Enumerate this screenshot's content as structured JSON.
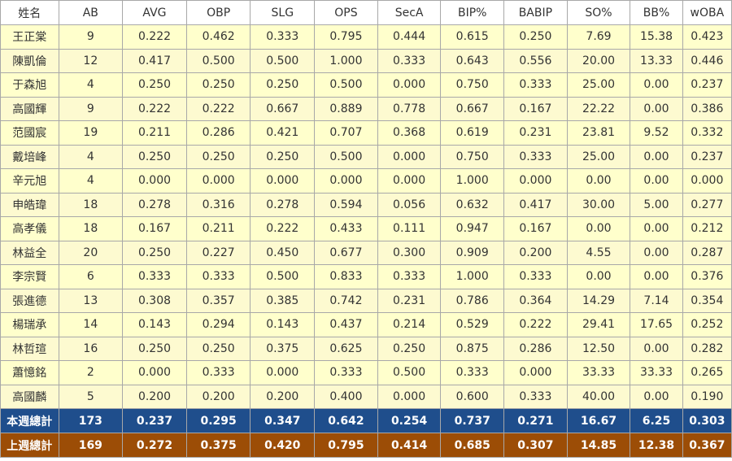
{
  "table": {
    "headers": [
      "姓名",
      "AB",
      "AVG",
      "OBP",
      "SLG",
      "OPS",
      "SecA",
      "BIP%",
      "BABIP",
      "SO%",
      "BB%",
      "wOBA"
    ],
    "rows": [
      [
        "王正棠",
        "9",
        "0.222",
        "0.462",
        "0.333",
        "0.795",
        "0.444",
        "0.615",
        "0.250",
        "7.69",
        "15.38",
        "0.423"
      ],
      [
        "陳凱倫",
        "12",
        "0.417",
        "0.500",
        "0.500",
        "1.000",
        "0.333",
        "0.643",
        "0.556",
        "20.00",
        "13.33",
        "0.446"
      ],
      [
        "于森旭",
        "4",
        "0.250",
        "0.250",
        "0.250",
        "0.500",
        "0.000",
        "0.750",
        "0.333",
        "25.00",
        "0.00",
        "0.237"
      ],
      [
        "高國輝",
        "9",
        "0.222",
        "0.222",
        "0.667",
        "0.889",
        "0.778",
        "0.667",
        "0.167",
        "22.22",
        "0.00",
        "0.386"
      ],
      [
        "范國宸",
        "19",
        "0.211",
        "0.286",
        "0.421",
        "0.707",
        "0.368",
        "0.619",
        "0.231",
        "23.81",
        "9.52",
        "0.332"
      ],
      [
        "戴培峰",
        "4",
        "0.250",
        "0.250",
        "0.250",
        "0.500",
        "0.000",
        "0.750",
        "0.333",
        "25.00",
        "0.00",
        "0.237"
      ],
      [
        "辛元旭",
        "4",
        "0.000",
        "0.000",
        "0.000",
        "0.000",
        "0.000",
        "1.000",
        "0.000",
        "0.00",
        "0.00",
        "0.000"
      ],
      [
        "申皓瑋",
        "18",
        "0.278",
        "0.316",
        "0.278",
        "0.594",
        "0.056",
        "0.632",
        "0.417",
        "30.00",
        "5.00",
        "0.277"
      ],
      [
        "高孝儀",
        "18",
        "0.167",
        "0.211",
        "0.222",
        "0.433",
        "0.111",
        "0.947",
        "0.167",
        "0.00",
        "0.00",
        "0.212"
      ],
      [
        "林益全",
        "20",
        "0.250",
        "0.227",
        "0.450",
        "0.677",
        "0.300",
        "0.909",
        "0.200",
        "4.55",
        "0.00",
        "0.287"
      ],
      [
        "李宗賢",
        "6",
        "0.333",
        "0.333",
        "0.500",
        "0.833",
        "0.333",
        "1.000",
        "0.333",
        "0.00",
        "0.00",
        "0.376"
      ],
      [
        "張進德",
        "13",
        "0.308",
        "0.357",
        "0.385",
        "0.742",
        "0.231",
        "0.786",
        "0.364",
        "14.29",
        "7.14",
        "0.354"
      ],
      [
        "楊瑞承",
        "14",
        "0.143",
        "0.294",
        "0.143",
        "0.437",
        "0.214",
        "0.529",
        "0.222",
        "29.41",
        "17.65",
        "0.252"
      ],
      [
        "林哲瑄",
        "16",
        "0.250",
        "0.250",
        "0.375",
        "0.625",
        "0.250",
        "0.875",
        "0.286",
        "12.50",
        "0.00",
        "0.282"
      ],
      [
        "蕭憶銘",
        "2",
        "0.000",
        "0.333",
        "0.000",
        "0.333",
        "0.500",
        "0.333",
        "0.000",
        "33.33",
        "33.33",
        "0.265"
      ],
      [
        "高國麟",
        "5",
        "0.200",
        "0.200",
        "0.200",
        "0.400",
        "0.000",
        "0.600",
        "0.333",
        "40.00",
        "0.00",
        "0.190"
      ]
    ],
    "totals": [
      {
        "kind": "this-week",
        "cells": [
          "本週總計",
          "173",
          "0.237",
          "0.295",
          "0.347",
          "0.642",
          "0.254",
          "0.737",
          "0.271",
          "16.67",
          "6.25",
          "0.303"
        ]
      },
      {
        "kind": "last-week",
        "cells": [
          "上週總計",
          "169",
          "0.272",
          "0.375",
          "0.420",
          "0.795",
          "0.414",
          "0.685",
          "0.307",
          "14.85",
          "12.38",
          "0.367"
        ]
      }
    ]
  },
  "colors": {
    "row_background": "#ffffcc",
    "header_background": "#ffffff",
    "this_week_total": "#1f4e8c",
    "last_week_total": "#9c4d06",
    "border": "#a8a8a8"
  }
}
